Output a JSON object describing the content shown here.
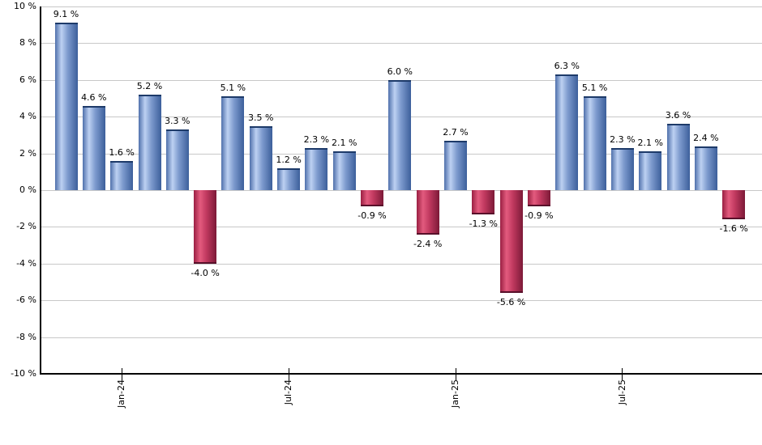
{
  "chart_data": {
    "type": "bar",
    "title": "",
    "xlabel": "",
    "ylabel": "",
    "ylim": [
      -10,
      10
    ],
    "grid": "horizontal",
    "legend": "none",
    "y_ticks": [
      {
        "value": 10,
        "label": "10 %"
      },
      {
        "value": 8,
        "label": "8 %"
      },
      {
        "value": 6,
        "label": "6 %"
      },
      {
        "value": 4,
        "label": "4 %"
      },
      {
        "value": 2,
        "label": "2 %"
      },
      {
        "value": 0,
        "label": "0 %"
      },
      {
        "value": -2,
        "label": "-2 %"
      },
      {
        "value": -4,
        "label": "-4 %"
      },
      {
        "value": -6,
        "label": "-6 %"
      },
      {
        "value": -8,
        "label": "-8 %"
      },
      {
        "value": -10,
        "label": "-10 %"
      }
    ],
    "x_ticks": [
      {
        "label": "Jan-24",
        "bar_index": 2
      },
      {
        "label": "Jul-24",
        "bar_index": 8
      },
      {
        "label": "Jan-25",
        "bar_index": 14
      },
      {
        "label": "Jul-25",
        "bar_index": 20
      }
    ],
    "bars": [
      {
        "value": 9.1,
        "label": "9.1 %"
      },
      {
        "value": 4.6,
        "label": "4.6 %"
      },
      {
        "value": 1.6,
        "label": "1.6 %"
      },
      {
        "value": 5.2,
        "label": "5.2 %"
      },
      {
        "value": 3.3,
        "label": "3.3 %"
      },
      {
        "value": -4.0,
        "label": "-4.0 %"
      },
      {
        "value": 5.1,
        "label": "5.1 %"
      },
      {
        "value": 3.5,
        "label": "3.5 %"
      },
      {
        "value": 1.2,
        "label": "1.2 %"
      },
      {
        "value": 2.3,
        "label": "2.3 %"
      },
      {
        "value": 2.1,
        "label": "2.1 %"
      },
      {
        "value": -0.9,
        "label": "-0.9 %"
      },
      {
        "value": 6.0,
        "label": "6.0 %"
      },
      {
        "value": -2.4,
        "label": "-2.4 %"
      },
      {
        "value": 2.7,
        "label": "2.7 %"
      },
      {
        "value": -1.3,
        "label": "-1.3 %"
      },
      {
        "value": -5.6,
        "label": "-5.6 %"
      },
      {
        "value": -0.9,
        "label": "-0.9 %"
      },
      {
        "value": 6.3,
        "label": "6.3 %"
      },
      {
        "value": 5.1,
        "label": "5.1 %"
      },
      {
        "value": 2.3,
        "label": "2.3 %"
      },
      {
        "value": 2.1,
        "label": "2.1 %"
      },
      {
        "value": 3.6,
        "label": "3.6 %"
      },
      {
        "value": 2.4,
        "label": "2.4 %"
      },
      {
        "value": -1.6,
        "label": "-1.6 %"
      }
    ],
    "colors": {
      "positive_gradient": [
        "#4f70ab",
        "#bdd1f2",
        "#7e9bce",
        "#3c5f9b"
      ],
      "positive_cap": "#1d3a69",
      "negative_gradient": [
        "#9a1f42",
        "#e35b7e",
        "#c23a60",
        "#7c1937"
      ],
      "negative_cap": "#58102a",
      "gridline": "#c8c8c8",
      "axis": "#000000",
      "text": "#000000"
    }
  }
}
